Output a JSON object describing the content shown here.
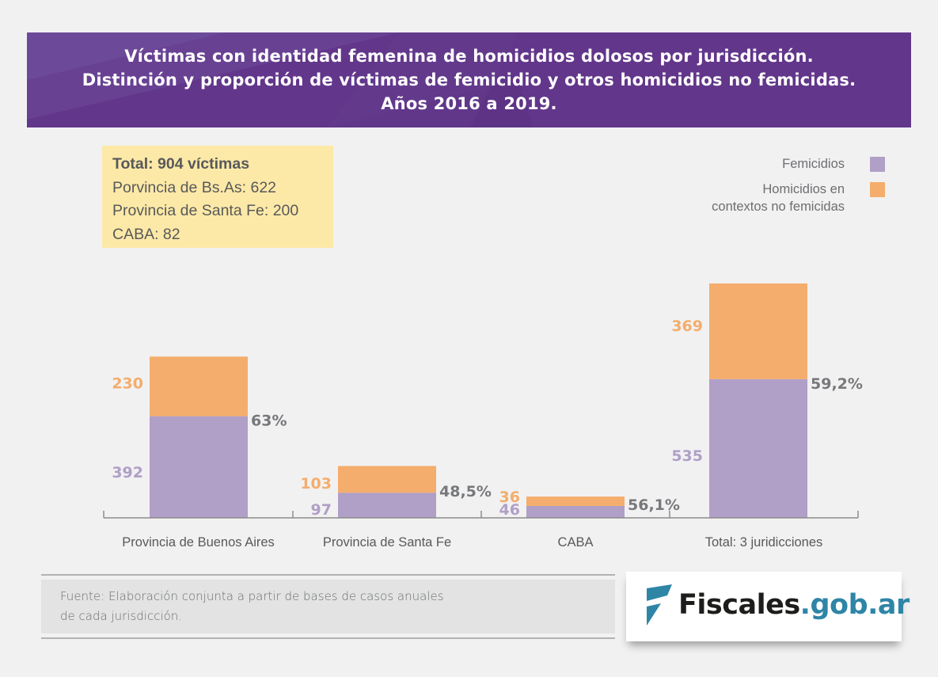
{
  "header": {
    "lines": [
      "Víctimas con identidad femenina de homicidios dolosos por jurisdicción.",
      "Distinción  y proporción de víctimas de femicidio y otros homicidios no femicidas.",
      "Años 2016 a 2019."
    ],
    "background": "#62368a"
  },
  "totals_box": {
    "title": "Total: 904 víctimas",
    "lines": [
      "Porvincia de Bs.As: 622",
      "Provincia de Santa Fe: 200",
      "CABA: 82"
    ]
  },
  "legend": {
    "femicidios": "Femicidios",
    "otros_line1": "Homicidios en",
    "otros_line2": "contextos no femicidas"
  },
  "chart_data": {
    "type": "bar",
    "stacked": true,
    "title": "Víctimas con identidad femenina de homicidios dolosos por jurisdicción. Distinción y proporción de víctimas de femicidio y otros homicidios no femicidas. Años 2016 a 2019.",
    "categories": [
      "Provincia de Buenos Aires",
      "Provincia de Santa Fe",
      "CABA",
      "Total: 3 juridicciones"
    ],
    "series": [
      {
        "name": "Femicidios",
        "values": [
          392,
          97,
          46,
          535
        ],
        "color": "#b09fc7"
      },
      {
        "name": "Homicidios en contextos no femicidas",
        "values": [
          230,
          103,
          36,
          369
        ],
        "color": "#f4ad6c"
      }
    ],
    "percent_labels": [
      "63%",
      "48,5%",
      "56,1%",
      "59,2%"
    ],
    "value_label_colors": {
      "femicidios": "#b09fc7",
      "otros": "#f4ad6c",
      "percent": "#77787b"
    },
    "xlabel": "",
    "ylabel": "",
    "ylim": [
      0,
      904
    ],
    "grid": false,
    "legend_position": "top-right"
  },
  "source": {
    "line1": "Fuente: Elaboración conjunta a partir de bases de casos anuales",
    "line2": "de cada jurisdicción."
  },
  "logo": {
    "dark_text": "Fiscales",
    "blue_text": ".gob.ar",
    "brand_color": "#2e85a6"
  }
}
